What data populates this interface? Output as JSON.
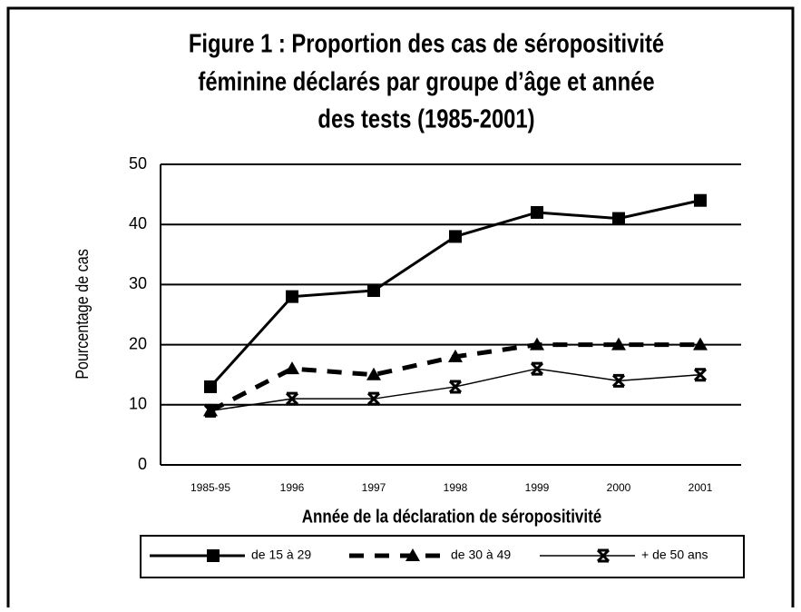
{
  "chart_data": {
    "type": "line",
    "title": [
      "Figure 1 :  Proportion des cas de séropositivité",
      "féminine déclarés par groupe d’âge et année",
      "des tests (1985-2001)"
    ],
    "x_label": "Année de la déclaration de séropositivité",
    "y_label": "Pourcentage de cas",
    "categories": [
      "1985-95",
      "1996",
      "1997",
      "1998",
      "1999",
      "2000",
      "2001"
    ],
    "series": [
      {
        "name": "de 15 à 29",
        "color": "#000000",
        "marker": "square",
        "style": "solid",
        "values": [
          13,
          28,
          29,
          38,
          42,
          41,
          44
        ]
      },
      {
        "name": "de 30 à 49",
        "color": "#000000",
        "marker": "triangle",
        "style": "dashed",
        "values": [
          9,
          16,
          15,
          18,
          20,
          20,
          20
        ]
      },
      {
        "name": "+ de 50 ans",
        "color": "#000000",
        "marker": "cross",
        "style": "thin",
        "values": [
          9,
          11,
          11,
          13,
          16,
          14,
          15
        ]
      }
    ],
    "ylim": [
      0,
      50
    ],
    "yticks": [
      0,
      10,
      20,
      30,
      40,
      50
    ],
    "grid": true
  }
}
